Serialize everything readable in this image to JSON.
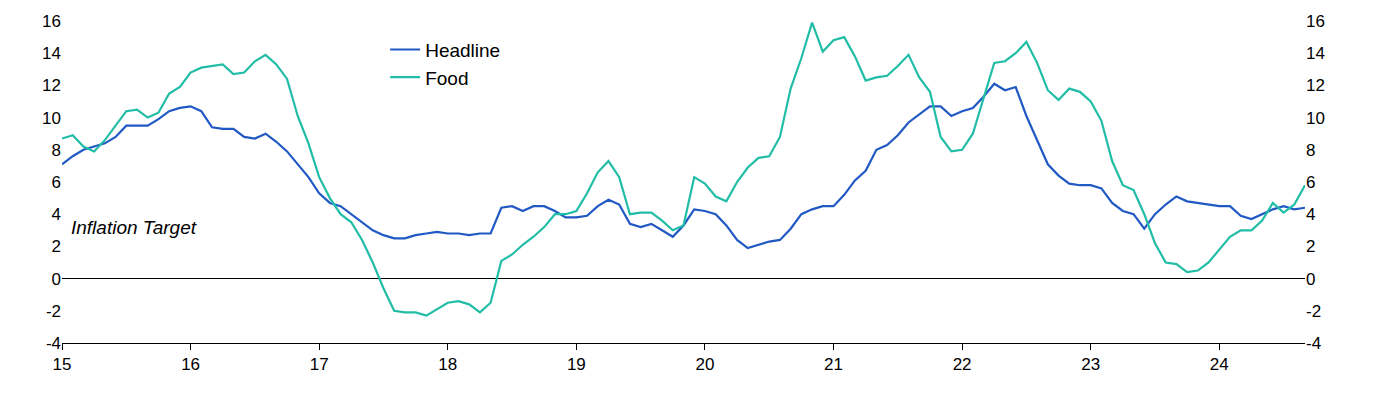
{
  "chart_data": {
    "type": "line",
    "categories": [
      "15",
      null,
      null,
      null,
      null,
      null,
      null,
      null,
      null,
      null,
      null,
      null,
      "16",
      null,
      null,
      null,
      null,
      null,
      null,
      null,
      null,
      null,
      null,
      null,
      "17",
      null,
      null,
      null,
      null,
      null,
      null,
      null,
      null,
      null,
      null,
      null,
      "18",
      null,
      null,
      null,
      null,
      null,
      null,
      null,
      null,
      null,
      null,
      null,
      "19",
      null,
      null,
      null,
      null,
      null,
      null,
      null,
      null,
      null,
      null,
      null,
      "20",
      null,
      null,
      null,
      null,
      null,
      null,
      null,
      null,
      null,
      null,
      null,
      "21",
      null,
      null,
      null,
      null,
      null,
      null,
      null,
      null,
      null,
      null,
      null,
      "22",
      null,
      null,
      null,
      null,
      null,
      null,
      null,
      null,
      null,
      null,
      null,
      "23",
      null,
      null,
      null,
      null,
      null,
      null,
      null,
      null,
      null,
      null,
      null,
      "24",
      null,
      null,
      null,
      null,
      null,
      null,
      null,
      null
    ],
    "series": [
      {
        "name": "Headline",
        "color": "#2159c4",
        "values": [
          7.1,
          7.6,
          8.0,
          8.2,
          8.4,
          8.8,
          9.5,
          9.5,
          9.5,
          9.9,
          10.4,
          10.6,
          10.7,
          10.4,
          9.4,
          9.3,
          9.3,
          8.8,
          8.7,
          9.0,
          8.5,
          7.9,
          7.1,
          6.3,
          5.3,
          4.7,
          4.5,
          4.0,
          3.5,
          3.0,
          2.7,
          2.5,
          2.5,
          2.7,
          2.8,
          2.9,
          2.8,
          2.8,
          2.7,
          2.8,
          2.8,
          4.4,
          4.5,
          4.2,
          4.5,
          4.5,
          4.2,
          3.8,
          3.8,
          3.9,
          4.5,
          4.9,
          4.6,
          3.4,
          3.2,
          3.4,
          3.0,
          2.6,
          3.3,
          4.3,
          4.2,
          4.0,
          3.3,
          2.4,
          1.9,
          2.1,
          2.3,
          2.4,
          3.1,
          4.0,
          4.3,
          4.5,
          4.5,
          5.2,
          6.1,
          6.7,
          8.0,
          8.3,
          8.9,
          9.7,
          10.2,
          10.7,
          10.7,
          10.1,
          10.4,
          10.6,
          11.3,
          12.1,
          11.7,
          11.9,
          10.1,
          8.6,
          7.1,
          6.4,
          5.9,
          5.8,
          5.8,
          5.6,
          4.7,
          4.2,
          4.0,
          3.1,
          4.0,
          4.6,
          5.1,
          4.8,
          4.7,
          4.6,
          4.5,
          4.5,
          3.9,
          3.7,
          4.0,
          4.3,
          4.5,
          4.3,
          4.4
        ]
      },
      {
        "name": "Food",
        "color": "#21bda6",
        "values": [
          8.7,
          8.9,
          8.2,
          7.9,
          8.6,
          9.5,
          10.4,
          10.5,
          10.0,
          10.3,
          11.5,
          11.9,
          12.8,
          13.1,
          13.2,
          13.3,
          12.7,
          12.8,
          13.5,
          13.9,
          13.3,
          12.4,
          10.1,
          8.4,
          6.3,
          5.0,
          4.0,
          3.5,
          2.4,
          1.0,
          -0.6,
          -2.0,
          -2.1,
          -2.1,
          -2.3,
          -1.9,
          -1.5,
          -1.4,
          -1.6,
          -2.1,
          -1.5,
          1.1,
          1.5,
          2.1,
          2.6,
          3.2,
          4.0,
          4.0,
          4.2,
          5.3,
          6.6,
          7.3,
          6.3,
          4.0,
          4.1,
          4.1,
          3.6,
          3.0,
          3.3,
          6.3,
          5.9,
          5.1,
          4.8,
          6.0,
          6.9,
          7.5,
          7.6,
          8.8,
          11.8,
          13.7,
          15.9,
          14.1,
          14.8,
          15.0,
          13.8,
          12.3,
          12.5,
          12.6,
          13.2,
          13.9,
          12.5,
          11.6,
          8.8,
          7.9,
          8.0,
          9.0,
          11.2,
          13.4,
          13.5,
          14.0,
          14.7,
          13.4,
          11.7,
          11.1,
          11.8,
          11.6,
          11.0,
          9.8,
          7.3,
          5.8,
          5.5,
          4.0,
          2.2,
          1.0,
          0.9,
          0.4,
          0.5,
          1.0,
          1.8,
          2.6,
          3.0,
          3.0,
          3.6,
          4.7,
          4.1,
          4.6,
          5.8
        ]
      }
    ],
    "ylim": [
      -4,
      16
    ],
    "yticks": [
      -4,
      -2,
      0,
      2,
      4,
      6,
      8,
      10,
      12,
      14,
      16
    ],
    "y2lim": [
      -4,
      16
    ],
    "y2ticks": [
      -4,
      -2,
      0,
      2,
      4,
      6,
      8,
      10,
      12,
      14,
      16
    ],
    "annotations": [
      {
        "text": "Inflation Target"
      }
    ],
    "legend": "top",
    "grid": false
  }
}
